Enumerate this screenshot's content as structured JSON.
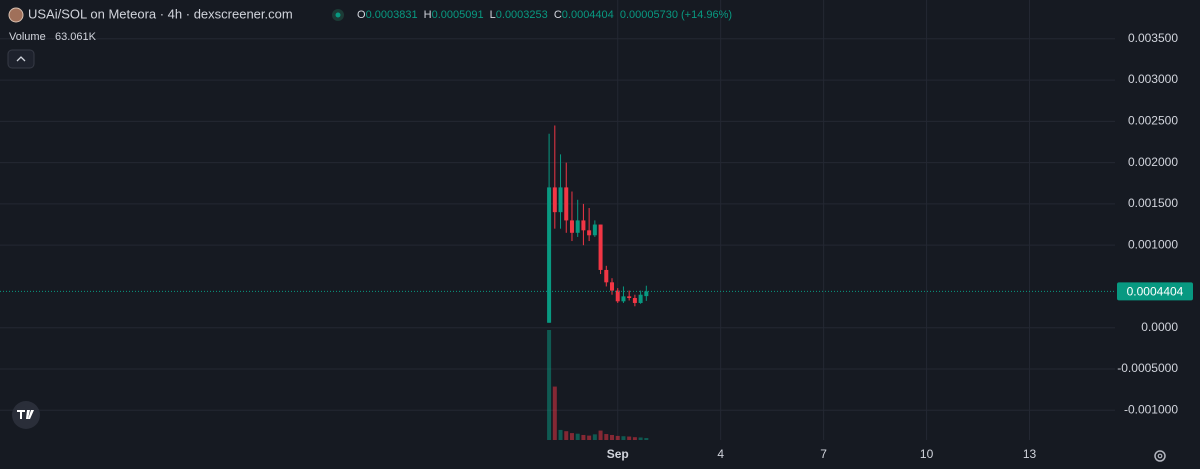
{
  "chart_data": {
    "type": "candlestick",
    "title": "USAi/SOL on Meteora · 4h · dexscreener.com",
    "ohlc_keys": [
      "O",
      "H",
      "L",
      "C"
    ],
    "change": "0.00005730 (+14.96%)",
    "volume_title": "Volume",
    "volume_label": "63.061K",
    "x": [
      -1,
      -0.8333,
      -0.6667,
      -0.5,
      -0.3333,
      -0.1667,
      0,
      0.1667,
      0.3333,
      0.5,
      0.6667,
      0.8333,
      1,
      1.1667,
      1.3333,
      1.5,
      1.6667,
      1.8333
    ],
    "open": [
      6e-05,
      0.0017,
      0.0014,
      0.0017,
      0.0013,
      0.00115,
      0.0013,
      0.00118,
      0.00112,
      0.00125,
      0.0007,
      0.00055,
      0.00045,
      0.00032,
      0.00038,
      0.00036,
      0.0003,
      0.0003831
    ],
    "high": [
      0.00235,
      0.00245,
      0.0021,
      0.002,
      0.00165,
      0.00155,
      0.0015,
      0.00145,
      0.0013,
      0.00125,
      0.00075,
      0.0006,
      0.00048,
      0.0005,
      0.00045,
      0.0004,
      0.00045,
      0.0005091
    ],
    "low": [
      6e-05,
      0.0012,
      0.0012,
      0.00115,
      0.00105,
      0.0011,
      0.001,
      0.00105,
      0.0011,
      0.00065,
      0.0005,
      0.0004,
      0.0003,
      0.0003,
      0.00033,
      0.00026,
      0.00029,
      0.0003253
    ],
    "close": [
      0.0017,
      0.0014,
      0.0017,
      0.0013,
      0.00115,
      0.0013,
      0.00118,
      0.00112,
      0.00125,
      0.0007,
      0.00055,
      0.00045,
      0.00032,
      0.00038,
      0.00036,
      0.0003,
      0.0004,
      0.0004404
    ],
    "volume": [
      3500000,
      1700000,
      320000,
      280000,
      220000,
      200000,
      160000,
      140000,
      180000,
      300000,
      190000,
      160000,
      130000,
      120000,
      110000,
      90000,
      80000,
      63061
    ],
    "up_color": "#089981",
    "down_color": "#f23645",
    "xlim": [
      -17.0,
      15.49
    ],
    "xticks": [
      {
        "value": 1,
        "label": "Sep"
      },
      4,
      7,
      10,
      13
    ],
    "ylim": [
      -0.00136,
      0.00397
    ],
    "yticks": [
      {
        "value": 0.0035,
        "label": "0.003500"
      },
      {
        "value": 0.003,
        "label": "0.003000"
      },
      {
        "value": 0.0025,
        "label": "0.002500"
      },
      {
        "value": 0.002,
        "label": "0.002000"
      },
      {
        "value": 0.0015,
        "label": "0.001500"
      },
      {
        "value": 0.001,
        "label": "0.001000"
      },
      {
        "value": 0,
        "label": "0.0000"
      },
      {
        "value": -0.0005,
        "label": "-0.0005000"
      },
      {
        "value": -0.001,
        "label": "-0.001000"
      }
    ],
    "grid": true
  }
}
